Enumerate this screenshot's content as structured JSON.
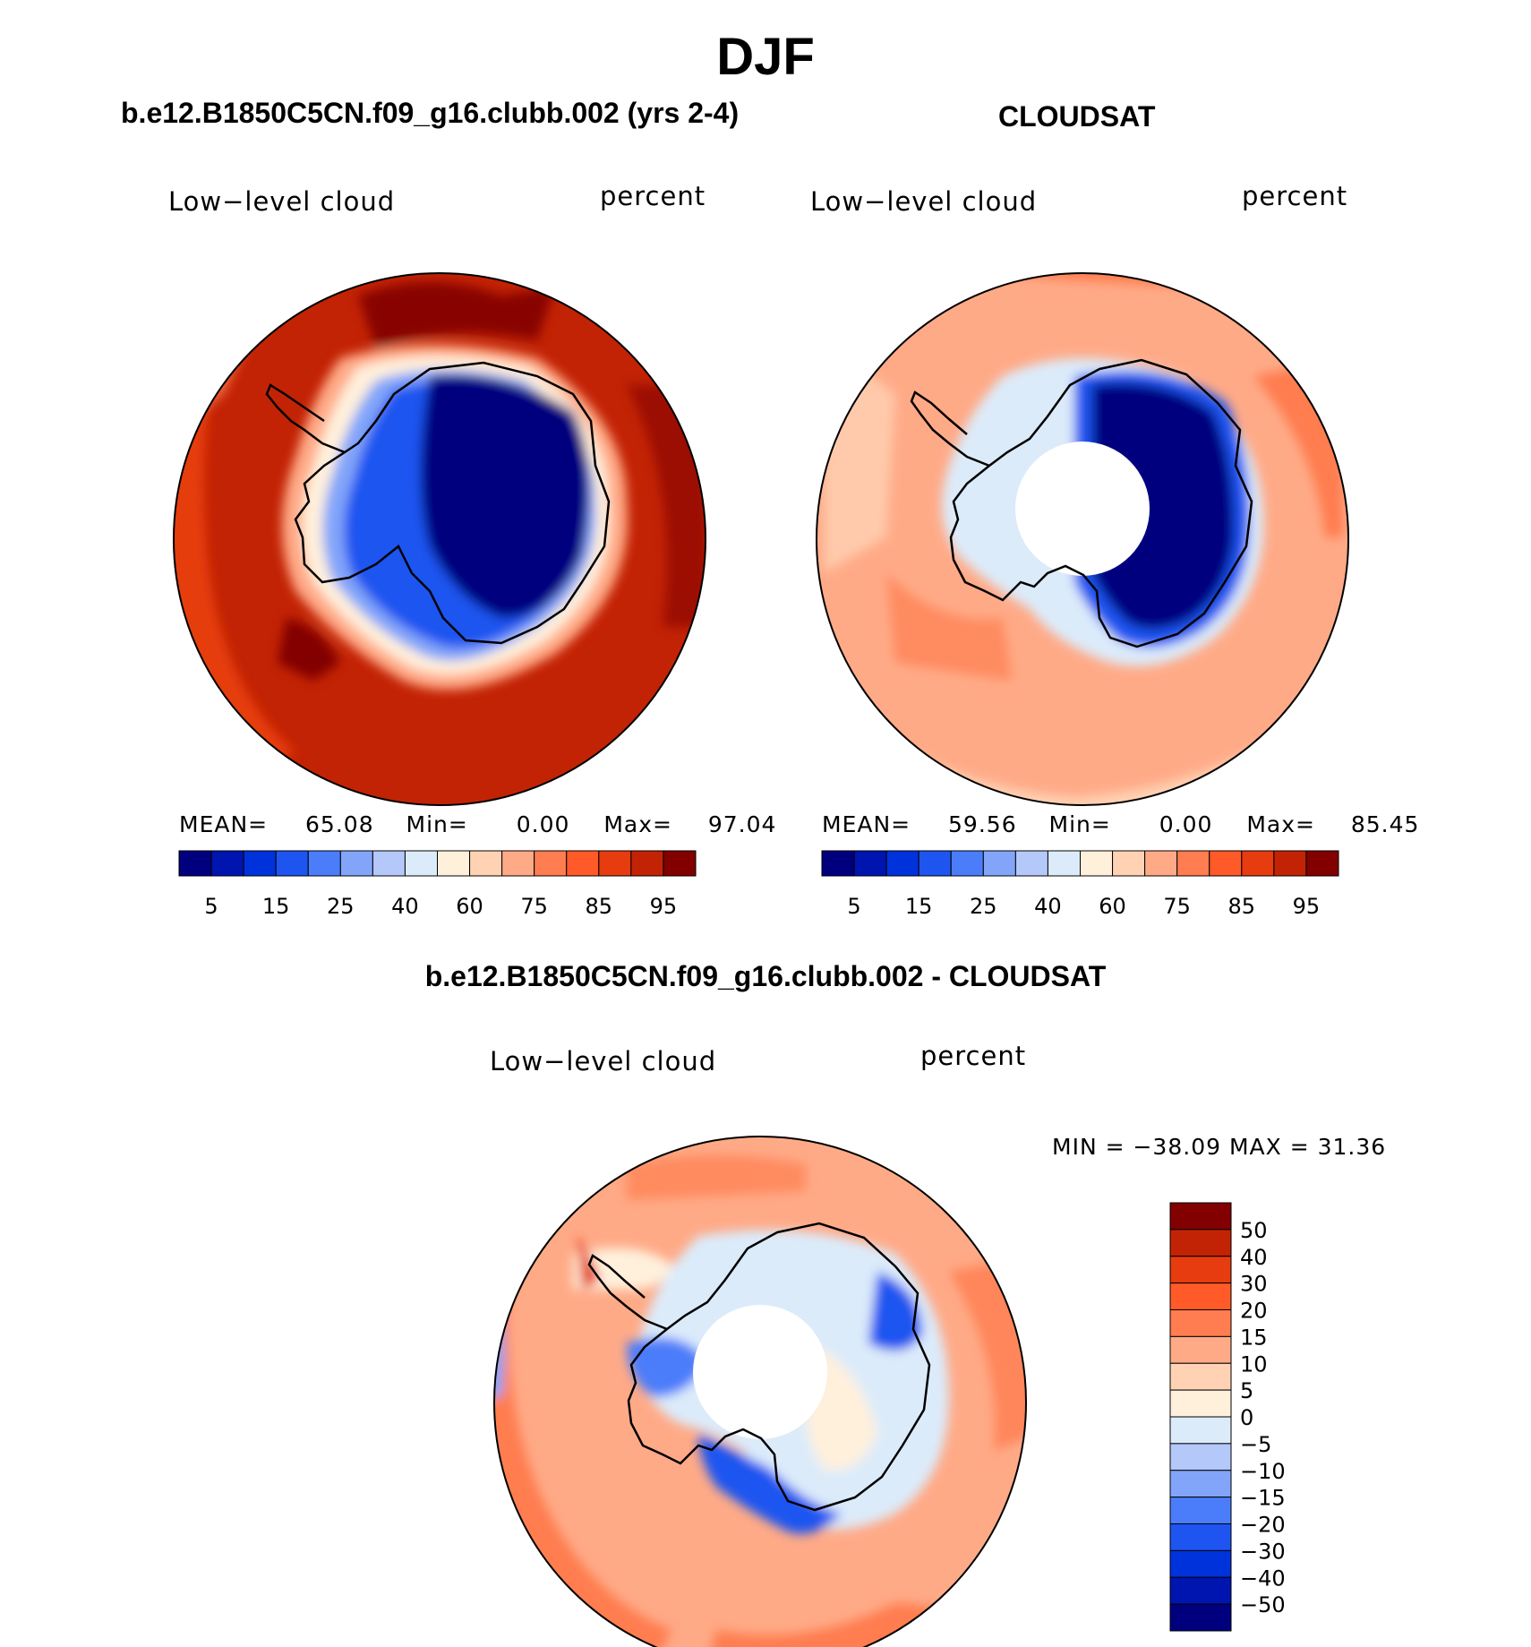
{
  "title": "DJF",
  "panels": [
    {
      "id": "model",
      "title": "b.e12.B1850C5CN.f09_g16.clubb.002 (yrs 2-4)",
      "left_label": "Low−level cloud",
      "right_label": "percent",
      "stats": {
        "mean_label": "MEAN=",
        "mean": "65.08",
        "min_label": "Min=",
        "min": "0.00",
        "max_label": "Max=",
        "max": "97.04"
      }
    },
    {
      "id": "obs",
      "title": "CLOUDSAT",
      "left_label": "Low−level cloud",
      "right_label": "percent",
      "stats": {
        "mean_label": "MEAN=",
        "mean": "59.56",
        "min_label": "Min=",
        "min": "0.00",
        "max_label": "Max=",
        "max": "85.45"
      }
    },
    {
      "id": "diff",
      "title": "b.e12.B1850C5CN.f09_g16.clubb.002 - CLOUDSAT",
      "left_label": "Low−level cloud",
      "right_label": "percent",
      "minmax": "MIN = −38.09 MAX =   31.36"
    }
  ],
  "colorbar_abs": {
    "ticks": [
      "5",
      "15",
      "25",
      "40",
      "60",
      "75",
      "85",
      "95"
    ],
    "colors": [
      "#00007f",
      "#0014b0",
      "#0032dc",
      "#1e55f0",
      "#4b7dfa",
      "#82a5fa",
      "#b4c8fa",
      "#dcebfa",
      "#fff0dc",
      "#ffd2b4",
      "#ffaa87",
      "#ff7d50",
      "#ff5a28",
      "#e63c0f",
      "#c32305",
      "#820000"
    ]
  },
  "colorbar_diff": {
    "ticks": [
      "50",
      "40",
      "30",
      "20",
      "15",
      "10",
      "5",
      "0",
      "−5",
      "−10",
      "−15",
      "−20",
      "−30",
      "−40",
      "−50"
    ],
    "colors": [
      "#820000",
      "#c32305",
      "#e63c0f",
      "#ff5a28",
      "#ff7d50",
      "#ffaa87",
      "#ffd2b4",
      "#fff0dc",
      "#dcebfa",
      "#b4c8fa",
      "#82a5fa",
      "#4b7dfa",
      "#1e55f0",
      "#0032dc",
      "#0014b0",
      "#00007f"
    ]
  }
}
